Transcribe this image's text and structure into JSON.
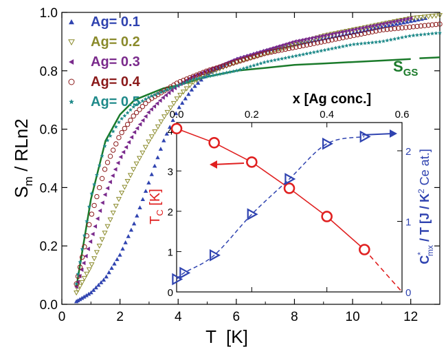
{
  "chart_data": [
    {
      "type": "scatter",
      "xlabel": "T",
      "xlabel_unit": "[K]",
      "ylabel": "S",
      "ylabel_sub": "m",
      "ylabel_rest": " / RLn2",
      "xlim": [
        0,
        13
      ],
      "ylim": [
        0,
        1.0
      ],
      "x_ticks": [
        0,
        2,
        4,
        6,
        8,
        10,
        12
      ],
      "y_ticks": [
        0.0,
        0.2,
        0.4,
        0.6,
        0.8,
        1.0
      ],
      "y_tick_labels": [
        "0.0",
        "0.2",
        "0.4",
        "0.6",
        "0.8",
        "1.0"
      ],
      "legend_position": "top-left",
      "series": [
        {
          "name": "Ag= 0.1",
          "marker": "triangle-up",
          "color": "#2f43b0",
          "x": [
            0.5,
            1.0,
            1.5,
            2.0,
            2.5,
            3.0,
            3.5,
            4.0,
            4.5,
            5.0,
            6.0,
            7.0,
            8.0,
            9.0,
            10.0,
            11.0,
            12.0,
            12.5
          ],
          "y": [
            0.01,
            0.04,
            0.09,
            0.17,
            0.28,
            0.42,
            0.56,
            0.67,
            0.74,
            0.79,
            0.84,
            0.87,
            0.89,
            0.91,
            0.93,
            0.95,
            0.97,
            0.98
          ]
        },
        {
          "name": "Ag= 0.2",
          "marker": "triangle-down-open",
          "color": "#8a8a2a",
          "x": [
            0.5,
            1.0,
            1.5,
            2.0,
            2.5,
            3.0,
            3.5,
            4.0,
            4.5,
            5.0,
            6.0,
            7.0,
            8.0,
            9.0,
            10.0,
            11.0,
            12.0,
            13.0
          ],
          "y": [
            0.04,
            0.13,
            0.25,
            0.37,
            0.47,
            0.56,
            0.64,
            0.71,
            0.76,
            0.79,
            0.83,
            0.86,
            0.89,
            0.92,
            0.94,
            0.96,
            0.98,
            0.99
          ]
        },
        {
          "name": "Ag= 0.3",
          "marker": "triangle-left",
          "color": "#7a2a8c",
          "x": [
            0.5,
            1.0,
            1.5,
            2.0,
            2.5,
            3.0,
            3.5,
            4.0,
            4.5,
            5.0,
            6.0,
            7.0,
            8.0,
            9.0,
            10.0,
            11.0,
            12.0
          ],
          "y": [
            0.06,
            0.22,
            0.38,
            0.5,
            0.59,
            0.66,
            0.71,
            0.75,
            0.78,
            0.8,
            0.84,
            0.87,
            0.9,
            0.92,
            0.94,
            0.96,
            0.98
          ]
        },
        {
          "name": "Ag= 0.4",
          "marker": "circle-open",
          "color": "#8b1a1a",
          "x": [
            0.5,
            1.0,
            1.5,
            2.0,
            2.5,
            3.0,
            3.5,
            4.0,
            4.5,
            5.0,
            6.0,
            7.0,
            8.0,
            9.0,
            10.0,
            11.0,
            12.0,
            13.0
          ],
          "y": [
            0.07,
            0.3,
            0.47,
            0.58,
            0.65,
            0.7,
            0.73,
            0.76,
            0.78,
            0.8,
            0.83,
            0.86,
            0.88,
            0.9,
            0.92,
            0.94,
            0.95,
            0.96
          ]
        },
        {
          "name": "Ag= 0.5",
          "marker": "star",
          "color": "#1f8a8a",
          "x": [
            0.5,
            1.0,
            1.5,
            2.0,
            2.5,
            3.0,
            3.5,
            4.0,
            4.5,
            5.0,
            6.0,
            7.0,
            8.0,
            9.0,
            10.0,
            11.0,
            12.0,
            13.0
          ],
          "y": [
            0.07,
            0.37,
            0.55,
            0.63,
            0.68,
            0.71,
            0.73,
            0.75,
            0.77,
            0.78,
            0.8,
            0.83,
            0.85,
            0.87,
            0.89,
            0.9,
            0.92,
            0.93
          ]
        }
      ],
      "reference_curve": {
        "name": "S",
        "name_sub": "GS",
        "color": "#1a7a2a",
        "x": [
          0.5,
          1.0,
          1.5,
          2.0,
          2.5,
          3.0,
          3.5,
          4.0,
          5.0,
          6.0,
          7.0,
          8.0,
          9.0,
          10.0,
          11.0,
          12.0
        ],
        "y": [
          0.06,
          0.36,
          0.56,
          0.65,
          0.7,
          0.72,
          0.74,
          0.75,
          0.78,
          0.8,
          0.81,
          0.82,
          0.825,
          0.83,
          0.835,
          0.84
        ]
      }
    },
    {
      "type": "line",
      "subtitle": "inset",
      "x_axis_top_label": "x [Ag conc.]",
      "xlim": [
        0,
        0.6
      ],
      "x_ticks": [
        0.0,
        0.2,
        0.4,
        0.6
      ],
      "x_tick_labels": [
        "0.0",
        "0.2",
        "0.4",
        "0.6"
      ],
      "left_axis": {
        "label": "T",
        "label_sub": "C",
        "label_rest": " [K]",
        "color": "#e02020",
        "ylim": [
          0,
          4.2
        ],
        "ticks": [
          0,
          1,
          2,
          3,
          4
        ]
      },
      "right_axis": {
        "label_main": "C",
        "label_sup": "*",
        "label_sub": "mx",
        "label_rest": " / T [J / K",
        "label_sup2": "2",
        "label_tail": " Ce at.]",
        "color": "#2f43b0",
        "ylim": [
          0,
          2.4
        ],
        "ticks": [
          0,
          1,
          2
        ]
      },
      "series": [
        {
          "name": "T_C",
          "axis": "left",
          "marker": "circle-open",
          "color": "#e02020",
          "x": [
            0.0,
            0.1,
            0.2,
            0.3,
            0.4,
            0.5
          ],
          "y": [
            4.05,
            3.7,
            3.22,
            2.57,
            1.87,
            1.05
          ],
          "extrapolated_to": [
            0.6,
            0.0
          ]
        },
        {
          "name": "C*mx/T",
          "axis": "right",
          "marker": "triangle-right-open",
          "color": "#2f43b0",
          "x": [
            0.0,
            0.02,
            0.1,
            0.2,
            0.3,
            0.4,
            0.5
          ],
          "y": [
            0.18,
            0.27,
            0.52,
            1.1,
            1.6,
            2.1,
            2.2
          ]
        }
      ]
    }
  ]
}
